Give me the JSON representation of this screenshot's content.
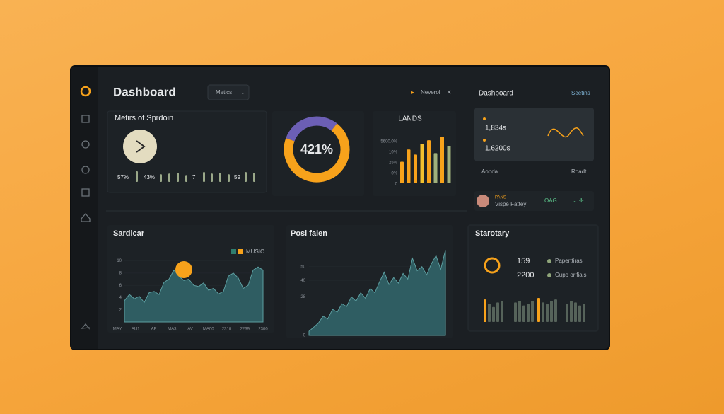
{
  "header": {
    "title": "Dashboard",
    "dropdown": "Metics",
    "notice": "Neverol"
  },
  "metrics_card": {
    "title": "Metirs of Sprdoin",
    "labels": [
      "57%",
      "43%",
      "7",
      "59"
    ],
    "bars": [
      14,
      10,
      11,
      12,
      9,
      13,
      11,
      12,
      10,
      13,
      12
    ],
    "color": "#9aa889"
  },
  "donut": {
    "label": "421%",
    "segments": [
      {
        "value": 30,
        "color": "#6c5fb5"
      },
      {
        "value": 70,
        "color": "#f7a21b"
      }
    ]
  },
  "lands": {
    "title": "LANDS",
    "y_labels": [
      "5600.0%",
      "10%",
      "25%",
      "0%",
      "0"
    ],
    "values": [
      30,
      47,
      40,
      55,
      60,
      42,
      65,
      52
    ],
    "colors": [
      "#f7a21b",
      "#f7a21b",
      "#f7a21b",
      "#f2c12e",
      "#f7a21b",
      "#9fb07c",
      "#f7a21b",
      "#9fb07c"
    ]
  },
  "side_panel": {
    "title": "Dashboard",
    "link": "Seetins",
    "stats": [
      "1,834s",
      "1.6200s"
    ],
    "left": "Aopda",
    "right": "Roadt",
    "profile": {
      "tag": "PANS",
      "name": "Vispe Fattey",
      "status": "OAG"
    }
  },
  "sardicar": {
    "title": "Sardicar",
    "legend": "MUSIO",
    "yticks": [
      2,
      4,
      6,
      8,
      10
    ],
    "ylim": [
      0,
      11
    ],
    "x_labels": [
      "MAY",
      "AU1",
      "AF",
      "MA3",
      "AV",
      "MA00",
      "2310",
      "2239",
      "2300"
    ],
    "values": [
      3.5,
      4.5,
      3.8,
      4.2,
      3.2,
      4.8,
      5,
      4.5,
      6.5,
      7,
      8.5,
      7.5,
      6.8,
      7,
      6,
      5.8,
      6.4,
      5.2,
      5.5,
      4.6,
      5,
      7.5,
      8,
      7.2,
      5.5,
      6,
      8.5,
      9,
      8.5
    ],
    "color": "#2f5d62"
  },
  "posl": {
    "title": "Posl faien",
    "yticks": [
      0,
      28,
      40,
      50
    ],
    "ylim": [
      0,
      55
    ],
    "values": [
      3,
      6,
      9,
      14,
      12,
      19,
      17,
      23,
      21,
      28,
      25,
      31,
      27,
      34,
      31,
      39,
      46,
      37,
      42,
      38,
      45,
      41,
      56,
      47,
      50,
      44,
      52,
      58,
      48,
      62
    ],
    "color": "#2f5d62"
  },
  "starotary": {
    "title": "Starotary",
    "stats": [
      {
        "value": 159,
        "label": "Paperttiras"
      },
      {
        "value": 2200,
        "label": "Cupo orifials"
      }
    ],
    "bars": [
      [
        30,
        24,
        20,
        26,
        28
      ],
      [
        26,
        28,
        22,
        24,
        28
      ],
      [
        32,
        26,
        24,
        28,
        30
      ],
      [
        24,
        28,
        26,
        22,
        24
      ]
    ],
    "colors": [
      "#f7a21b",
      "#56635a"
    ]
  }
}
